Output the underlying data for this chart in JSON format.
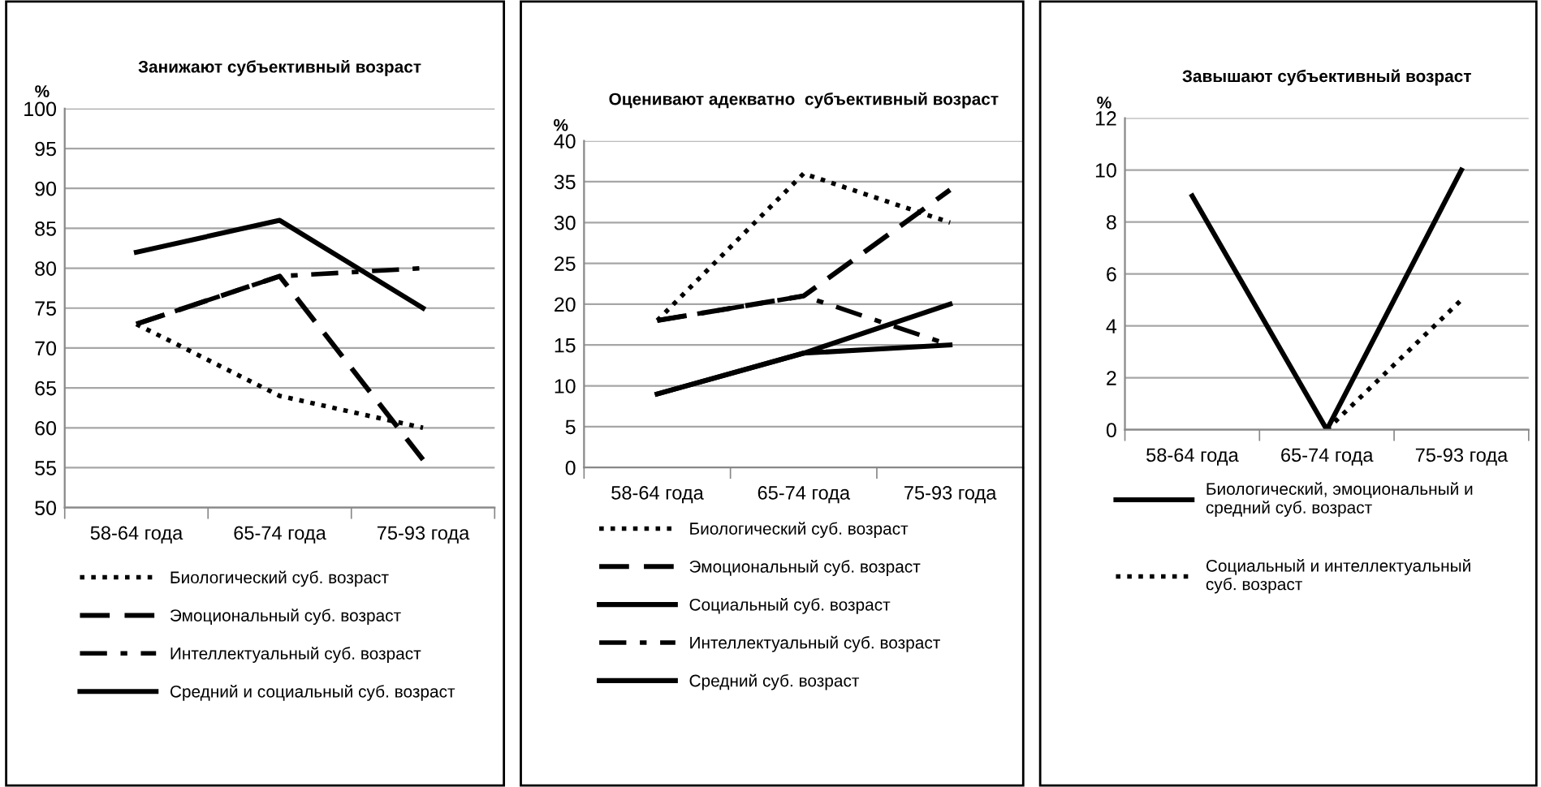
{
  "chart_data": [
    {
      "type": "line",
      "title": "Занижают субъективный возраст",
      "ylabel": "%",
      "categories": [
        "58-64 года",
        "65-74 года",
        "75-93 года"
      ],
      "ylim": [
        50,
        100
      ],
      "yticks": [
        50,
        55,
        60,
        65,
        70,
        75,
        80,
        85,
        90,
        95,
        100
      ],
      "grid": "y",
      "legend": "bottom",
      "series": [
        {
          "name": "Биологический суб. возраст",
          "color": "#000000",
          "line_style": "dotted",
          "values": [
            73,
            64,
            60
          ]
        },
        {
          "name": "Эмоциональный суб. возраст",
          "color": "#000000",
          "line_style": "dashed",
          "values": [
            73,
            79,
            56
          ]
        },
        {
          "name": "Интеллектуальный суб. возраст",
          "color": "#000000",
          "line_style": "dashdot",
          "values": [
            73,
            79,
            80
          ]
        },
        {
          "name": "Средний и социальный суб. возраст",
          "color": "#000000",
          "line_style": "solid",
          "values": [
            82,
            86,
            75
          ]
        }
      ]
    },
    {
      "type": "line",
      "title": "Оценивают адекватно  субъективный возраст",
      "ylabel": "%",
      "categories": [
        "58-64 года",
        "65-74 года",
        "75-93 года"
      ],
      "ylim": [
        0,
        40
      ],
      "yticks": [
        0,
        5,
        10,
        15,
        20,
        25,
        30,
        35,
        40
      ],
      "grid": "y",
      "legend": "bottom",
      "series": [
        {
          "name": "Биологический суб. возраст",
          "color": "#000000",
          "line_style": "dotted",
          "values": [
            18,
            36,
            30
          ]
        },
        {
          "name": "Эмоциональный суб. возраст",
          "color": "#000000",
          "line_style": "dashed",
          "values": [
            18,
            21,
            34
          ]
        },
        {
          "name": "Социальный суб. возраст",
          "color": "#000000",
          "line_style": "solid",
          "values": [
            9,
            14,
            20
          ]
        },
        {
          "name": "Интеллектуальный суб. возраст",
          "color": "#000000",
          "line_style": "dashdot",
          "values": [
            18,
            21,
            15
          ]
        },
        {
          "name": "Средний суб. возраст",
          "color": "#000000",
          "line_style": "solid",
          "values": [
            9,
            14,
            15
          ]
        }
      ]
    },
    {
      "type": "line",
      "title": "Завышают субъективный возраст",
      "ylabel": "%",
      "categories": [
        "58-64 года",
        "65-74 года",
        "75-93 года"
      ],
      "ylim": [
        0,
        12
      ],
      "yticks": [
        0,
        2,
        4,
        6,
        8,
        10,
        12
      ],
      "grid": "y",
      "legend": "bottom",
      "series": [
        {
          "name": "Биологический, эмоциональный и\nсредний суб. возраст",
          "color": "#000000",
          "line_style": "solid",
          "values": [
            9,
            0,
            10
          ]
        },
        {
          "name": "Социальный и интеллектуальный\nсуб. возраст",
          "color": "#000000",
          "line_style": "dotted",
          "values": [
            null,
            0,
            5
          ]
        }
      ]
    }
  ]
}
